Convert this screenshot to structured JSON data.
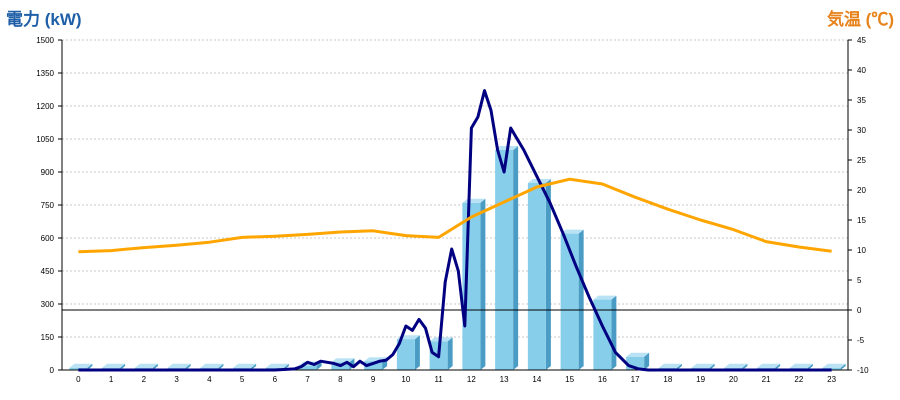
{
  "colors": {
    "left_title": "#1f5fa8",
    "right_title": "#e8821a",
    "bar_face": "#87ceeb",
    "bar_side": "#4a9cc4",
    "bar_top": "#b9e3f5",
    "power_line": "#000080",
    "temp_line": "#ffa500",
    "grid": "#c8c8c8"
  },
  "chart_data": {
    "type": "bar",
    "left_axis": {
      "label": "電力 (kW)",
      "range": [
        0,
        1500
      ],
      "ticks": [
        0,
        150,
        300,
        450,
        600,
        750,
        900,
        1050,
        1200,
        1350,
        1500
      ]
    },
    "right_axis": {
      "label": "気温 (℃)",
      "range": [
        -10,
        45
      ],
      "ticks": [
        -10,
        -5,
        0,
        5,
        10,
        15,
        20,
        25,
        30,
        35,
        40,
        45
      ]
    },
    "categories": [
      "0",
      "1",
      "2",
      "3",
      "4",
      "5",
      "6",
      "7",
      "8",
      "9",
      "10",
      "11",
      "12",
      "13",
      "14",
      "15",
      "16",
      "17",
      "18",
      "19",
      "20",
      "21",
      "22",
      "23"
    ],
    "grid": true,
    "series": [
      {
        "kind": "bar",
        "axis": "left",
        "values": [
          10,
          10,
          10,
          10,
          10,
          10,
          10,
          20,
          35,
          40,
          140,
          130,
          760,
          1000,
          850,
          620,
          320,
          60,
          10,
          10,
          10,
          10,
          10,
          10
        ]
      },
      {
        "kind": "line",
        "axis": "left",
        "x": [
          0,
          1,
          2,
          3,
          4,
          5,
          6,
          6.6,
          6.8,
          7.0,
          7.2,
          7.4,
          7.6,
          7.8,
          8.0,
          8.2,
          8.4,
          8.6,
          8.8,
          9.0,
          9.2,
          9.4,
          9.6,
          9.8,
          10.0,
          10.2,
          10.4,
          10.6,
          10.8,
          11.0,
          11.2,
          11.4,
          11.6,
          11.8,
          12.0,
          12.2,
          12.4,
          12.6,
          12.8,
          13.0,
          13.2,
          13.4,
          13.6,
          13.8,
          14.0,
          14.4,
          14.8,
          15.2,
          15.6,
          16.0,
          16.4,
          16.8,
          17.1,
          17.4,
          17.6,
          18,
          19,
          20,
          21,
          22,
          23
        ],
        "values": [
          0,
          0,
          0,
          0,
          0,
          0,
          0,
          5,
          15,
          35,
          25,
          40,
          35,
          30,
          20,
          35,
          15,
          40,
          20,
          30,
          40,
          45,
          70,
          120,
          200,
          180,
          230,
          190,
          80,
          60,
          400,
          550,
          450,
          200,
          1100,
          1150,
          1270,
          1180,
          1000,
          900,
          1100,
          1050,
          1000,
          940,
          880,
          760,
          620,
          470,
          330,
          200,
          80,
          20,
          5,
          0,
          0,
          0,
          0,
          0,
          0,
          0,
          0
        ]
      },
      {
        "kind": "line",
        "axis": "right",
        "x": [
          0,
          1,
          2,
          3,
          4,
          5,
          6,
          7,
          8,
          9,
          10,
          11,
          12,
          13,
          14,
          15,
          16,
          17,
          18,
          19,
          20,
          21,
          22,
          23
        ],
        "values": [
          9.7,
          9.9,
          10.4,
          10.8,
          11.3,
          12.1,
          12.3,
          12.6,
          13,
          13.2,
          12.4,
          12.1,
          15.5,
          18,
          20.5,
          21.8,
          21,
          18.8,
          16.8,
          15,
          13.4,
          11.4,
          10.5,
          9.8
        ]
      }
    ]
  }
}
